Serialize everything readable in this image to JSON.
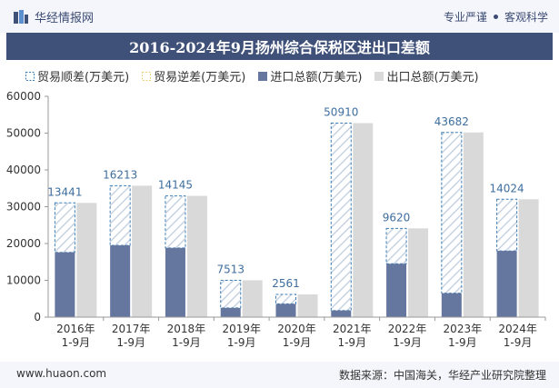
{
  "header": {
    "brand": "华经情报网",
    "tag1": "专业严谨",
    "tag2": "客观科学"
  },
  "footer": {
    "site": "www.huaon.com",
    "source": "数据来源：中国海关，华经产业研究院整理"
  },
  "colors": {
    "surplus": "#3f7fb5",
    "deficit": "#e8d37a",
    "import": "#65769f",
    "export": "#d9d9d9",
    "label": "#3d6e9e"
  },
  "chart_data": {
    "type": "bar",
    "title": "2016-2024年9月扬州综合保税区进出口差额",
    "categories": [
      "2016年\n1-9月",
      "2017年\n1-9月",
      "2018年\n1-9月",
      "2019年\n1-9月",
      "2020年\n1-9月",
      "2021年\n1-9月",
      "2022年\n1-9月",
      "2023年\n1-9月",
      "2024年\n1-9月"
    ],
    "ylim": [
      0,
      60000
    ],
    "yticks": [
      0,
      10000,
      20000,
      30000,
      40000,
      50000,
      60000
    ],
    "series": [
      {
        "name": "贸易顺差(万美元)",
        "values": [
          13441,
          16213,
          14145,
          7513,
          2561,
          50910,
          9620,
          43682,
          14024
        ]
      },
      {
        "name": "贸易逆差(万美元)",
        "values": [
          0,
          0,
          0,
          0,
          0,
          0,
          0,
          0,
          0
        ]
      },
      {
        "name": "进口总额(万美元)",
        "values": [
          17600,
          19500,
          18800,
          2500,
          3600,
          1800,
          14500,
          6500,
          18000
        ]
      },
      {
        "name": "出口总额(万美元)",
        "values": [
          31041,
          35713,
          32945,
          10013,
          6161,
          52710,
          24120,
          50182,
          32024
        ]
      }
    ]
  }
}
